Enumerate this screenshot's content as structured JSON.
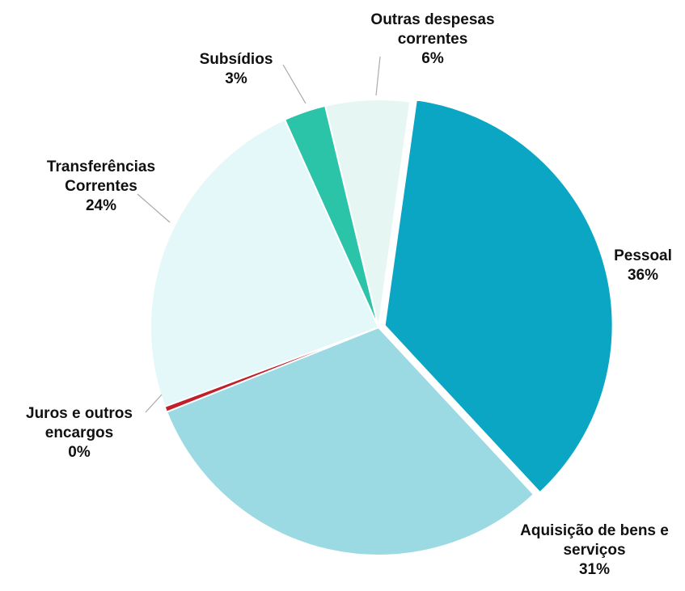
{
  "chart_data": {
    "type": "pie",
    "categories": [
      "Pessoal",
      "Aquisição de bens e serviços",
      "Juros e outros encargos",
      "Transferências Correntes",
      "Subsídios",
      "Outras despesas correntes"
    ],
    "values": [
      36,
      31,
      0.4,
      24,
      3,
      6
    ],
    "value_labels": [
      "36%",
      "31%",
      "0%",
      "24%",
      "3%",
      "6%"
    ],
    "colors": [
      "#0aa6c4",
      "#9bd9e3",
      "#c0202a",
      "#e4f7f9",
      "#2bc4a8",
      "#e6f7f3"
    ]
  }
}
